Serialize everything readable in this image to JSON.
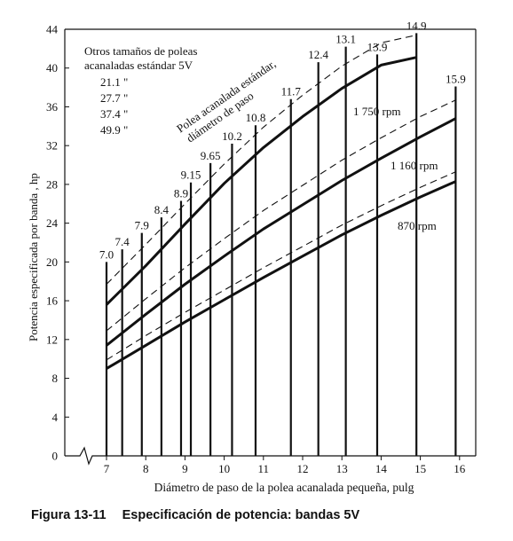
{
  "chart_data": {
    "type": "line",
    "ylabel": "Potencia especificada por banda , hp",
    "xlabel": "Diámetro de paso de la polea acanalada pequeña, pulg",
    "xlim": [
      6.8,
      16.2
    ],
    "ylim": [
      0,
      44
    ],
    "x_ticks": [
      "7",
      "8",
      "9",
      "10",
      "11",
      "12",
      "13",
      "14",
      "15",
      "16"
    ],
    "y_ticks": [
      "0",
      "4",
      "8",
      "12",
      "16",
      "20",
      "24",
      "28",
      "32",
      "36",
      "40",
      "44"
    ],
    "grid": false,
    "series": [
      {
        "name": "1 750 rpm",
        "style": "solid",
        "x": [
          7.0,
          8.0,
          9.0,
          10.0,
          11.0,
          12.0,
          13.0,
          14.0,
          14.9
        ],
        "y": [
          15.6,
          19.6,
          23.9,
          28.1,
          31.8,
          35.0,
          37.9,
          40.3,
          41.1
        ]
      },
      {
        "name": "1 160 rpm",
        "style": "solid",
        "x": [
          7.0,
          8.0,
          9.0,
          10.0,
          11.0,
          12.0,
          13.0,
          14.0,
          15.0,
          15.9
        ],
        "y": [
          11.4,
          14.6,
          17.7,
          20.6,
          23.4,
          25.9,
          28.4,
          30.7,
          32.9,
          34.8
        ]
      },
      {
        "name": "870 rpm",
        "style": "solid",
        "x": [
          7.0,
          8.0,
          9.0,
          10.0,
          11.0,
          12.0,
          13.0,
          14.0,
          15.0,
          15.9
        ],
        "y": [
          9.0,
          11.4,
          13.8,
          16.1,
          18.4,
          20.6,
          22.8,
          24.8,
          26.7,
          28.3
        ]
      },
      {
        "name": "",
        "style": "dashed",
        "x": [
          7.0,
          8.0,
          9.0,
          10.0,
          11.0,
          12.0,
          13.0,
          14.0,
          14.9
        ],
        "y": [
          17.7,
          21.8,
          26.0,
          30.1,
          33.9,
          37.2,
          40.2,
          42.6,
          43.4
        ]
      },
      {
        "name": "",
        "style": "dashed",
        "x": [
          7.0,
          8.0,
          9.0,
          10.0,
          11.0,
          12.0,
          13.0,
          14.0,
          15.0,
          15.9
        ],
        "y": [
          12.9,
          16.2,
          19.4,
          22.4,
          25.3,
          27.9,
          30.5,
          32.8,
          35.0,
          36.7
        ]
      },
      {
        "name": "",
        "style": "dashed",
        "x": [
          7.0,
          8.0,
          9.0,
          10.0,
          11.0,
          12.0,
          13.0,
          14.0,
          15.0,
          15.9
        ],
        "y": [
          9.9,
          12.4,
          14.8,
          17.1,
          19.4,
          21.6,
          23.8,
          25.8,
          27.7,
          29.3
        ]
      }
    ],
    "standard_sheaves": [
      {
        "d": 7.0,
        "label": "7.0",
        "top": 20.0
      },
      {
        "d": 7.4,
        "label": "7.4",
        "top": 21.3
      },
      {
        "d": 7.9,
        "label": "7.9",
        "top": 23.0
      },
      {
        "d": 8.4,
        "label": "8.4",
        "top": 24.6
      },
      {
        "d": 8.9,
        "label": "8.9",
        "top": 26.3
      },
      {
        "d": 9.15,
        "label": "9.15",
        "top": 28.2
      },
      {
        "d": 9.65,
        "label": "9.65",
        "top": 30.2
      },
      {
        "d": 10.2,
        "label": "10.2",
        "top": 32.2
      },
      {
        "d": 10.8,
        "label": "10.8",
        "top": 34.1
      },
      {
        "d": 11.7,
        "label": "11.7",
        "top": 36.8
      },
      {
        "d": 12.4,
        "label": "12.4",
        "top": 40.6
      },
      {
        "d": 13.1,
        "label": "13.1",
        "top": 42.2
      },
      {
        "d": 13.9,
        "label": "13.9",
        "top": 41.4
      },
      {
        "d": 14.9,
        "label": "14.9",
        "top": 43.6
      },
      {
        "d": 15.9,
        "label": "15.9",
        "top": 38.1
      }
    ],
    "annotations": {
      "other_sizes_title_1": "Otros tamaños de poleas",
      "other_sizes_title_2": "acanaladas estándar 5V",
      "other_sizes": [
        "21.1 \"",
        "27.7 \"",
        "37.4 \"",
        "49.9 \""
      ],
      "sheave_label_1": "Polea acanalada estándar,",
      "sheave_label_2": "diámetro de paso"
    }
  },
  "caption": {
    "number": "Figura 13-11",
    "text": "Especificación de potencia: bandas 5V"
  }
}
